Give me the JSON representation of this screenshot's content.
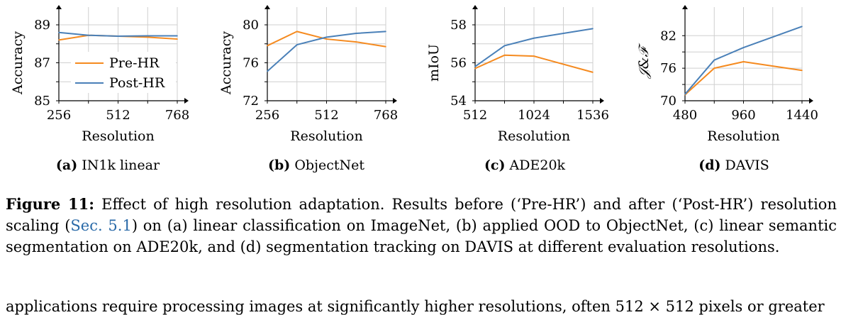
{
  "colors": {
    "pre": "#f58a1f",
    "post": "#4a80b8",
    "grid": "#cfcfcf",
    "ref": "#2a6aa8"
  },
  "chart_data": [
    {
      "type": "line",
      "title": "",
      "xlabel": "Resolution",
      "ylabel": "Accuracy",
      "xlim": [
        256,
        768
      ],
      "ylim": [
        85,
        89
      ],
      "xticks": [
        256,
        512,
        768
      ],
      "yticks": [
        85,
        87,
        89
      ],
      "xgrid": [
        256,
        384,
        512,
        640,
        768
      ],
      "ygrid": [
        85,
        86,
        87,
        88,
        89
      ],
      "x": [
        256,
        384,
        512,
        640,
        768
      ],
      "series": [
        {
          "name": "Pre-HR",
          "values": [
            88.2,
            88.45,
            88.4,
            88.35,
            88.25
          ]
        },
        {
          "name": "Post-HR",
          "values": [
            88.6,
            88.45,
            88.4,
            88.42,
            88.42
          ]
        }
      ],
      "legend": "inside-bottom-left"
    },
    {
      "type": "line",
      "title": "",
      "xlabel": "Resolution",
      "ylabel": "Accuracy",
      "xlim": [
        256,
        768
      ],
      "ylim": [
        72,
        80
      ],
      "xticks": [
        256,
        512,
        768
      ],
      "yticks": [
        72,
        76,
        80
      ],
      "xgrid": [
        256,
        384,
        512,
        640,
        768
      ],
      "ygrid": [
        72,
        74,
        76,
        78,
        80
      ],
      "x": [
        256,
        384,
        512,
        640,
        768
      ],
      "series": [
        {
          "name": "Pre-HR",
          "values": [
            77.8,
            79.3,
            78.5,
            78.2,
            77.7
          ]
        },
        {
          "name": "Post-HR",
          "values": [
            75.1,
            77.9,
            78.7,
            79.1,
            79.3
          ]
        }
      ]
    },
    {
      "type": "line",
      "title": "",
      "xlabel": "Resolution",
      "ylabel": "mIoU",
      "xlim": [
        512,
        1536
      ],
      "ylim": [
        54,
        58
      ],
      "xticks": [
        512,
        1024,
        1536
      ],
      "yticks": [
        54,
        56,
        58
      ],
      "xgrid": [
        512,
        768,
        1024,
        1280,
        1536
      ],
      "ygrid": [
        54,
        55,
        56,
        57,
        58
      ],
      "x": [
        512,
        768,
        1024,
        1536
      ],
      "series": [
        {
          "name": "Pre-HR",
          "values": [
            55.7,
            56.4,
            56.35,
            55.5
          ]
        },
        {
          "name": "Post-HR",
          "values": [
            55.8,
            56.9,
            57.3,
            57.8
          ]
        }
      ]
    },
    {
      "type": "line",
      "title": "",
      "xlabel": "Resolution",
      "ylabel": "𝒥&ℱ",
      "xlim": [
        480,
        1440
      ],
      "ylim": [
        70,
        84
      ],
      "xticks": [
        480,
        960,
        1440
      ],
      "yticks": [
        70,
        76,
        82
      ],
      "xgrid": [
        480,
        720,
        960,
        1200,
        1440
      ],
      "ygrid": [
        70,
        73,
        76,
        79,
        82
      ],
      "x": [
        480,
        720,
        960,
        1440
      ],
      "series": [
        {
          "name": "Pre-HR",
          "values": [
            71.1,
            76.0,
            77.2,
            75.6
          ]
        },
        {
          "name": "Post-HR",
          "values": [
            71.2,
            77.5,
            79.8,
            83.7
          ]
        }
      ]
    }
  ],
  "subcaptions": [
    {
      "tag": "(a)",
      "text": "IN1k linear"
    },
    {
      "tag": "(b)",
      "text": "ObjectNet"
    },
    {
      "tag": "(c)",
      "text": "ADE20k"
    },
    {
      "tag": "(d)",
      "text": "DAVIS"
    }
  ],
  "caption": {
    "label": "Figure 11:",
    "text1": "Effect of high resolution adaptation. Results before (‘Pre-HR’) and after (‘Post-HR’) resolution scaling (",
    "ref": "Sec. 5.1",
    "text2": ") on (a) linear classification on ImageNet, (b) applied OOD to ObjectNet, (c) linear semantic segmentation on ADE20k, and (d) segmentation tracking on DAVIS at different evaluation resolutions."
  },
  "cut_text": "applications require processing images at significantly higher resolutions, often 512 × 512 pixels or greater"
}
